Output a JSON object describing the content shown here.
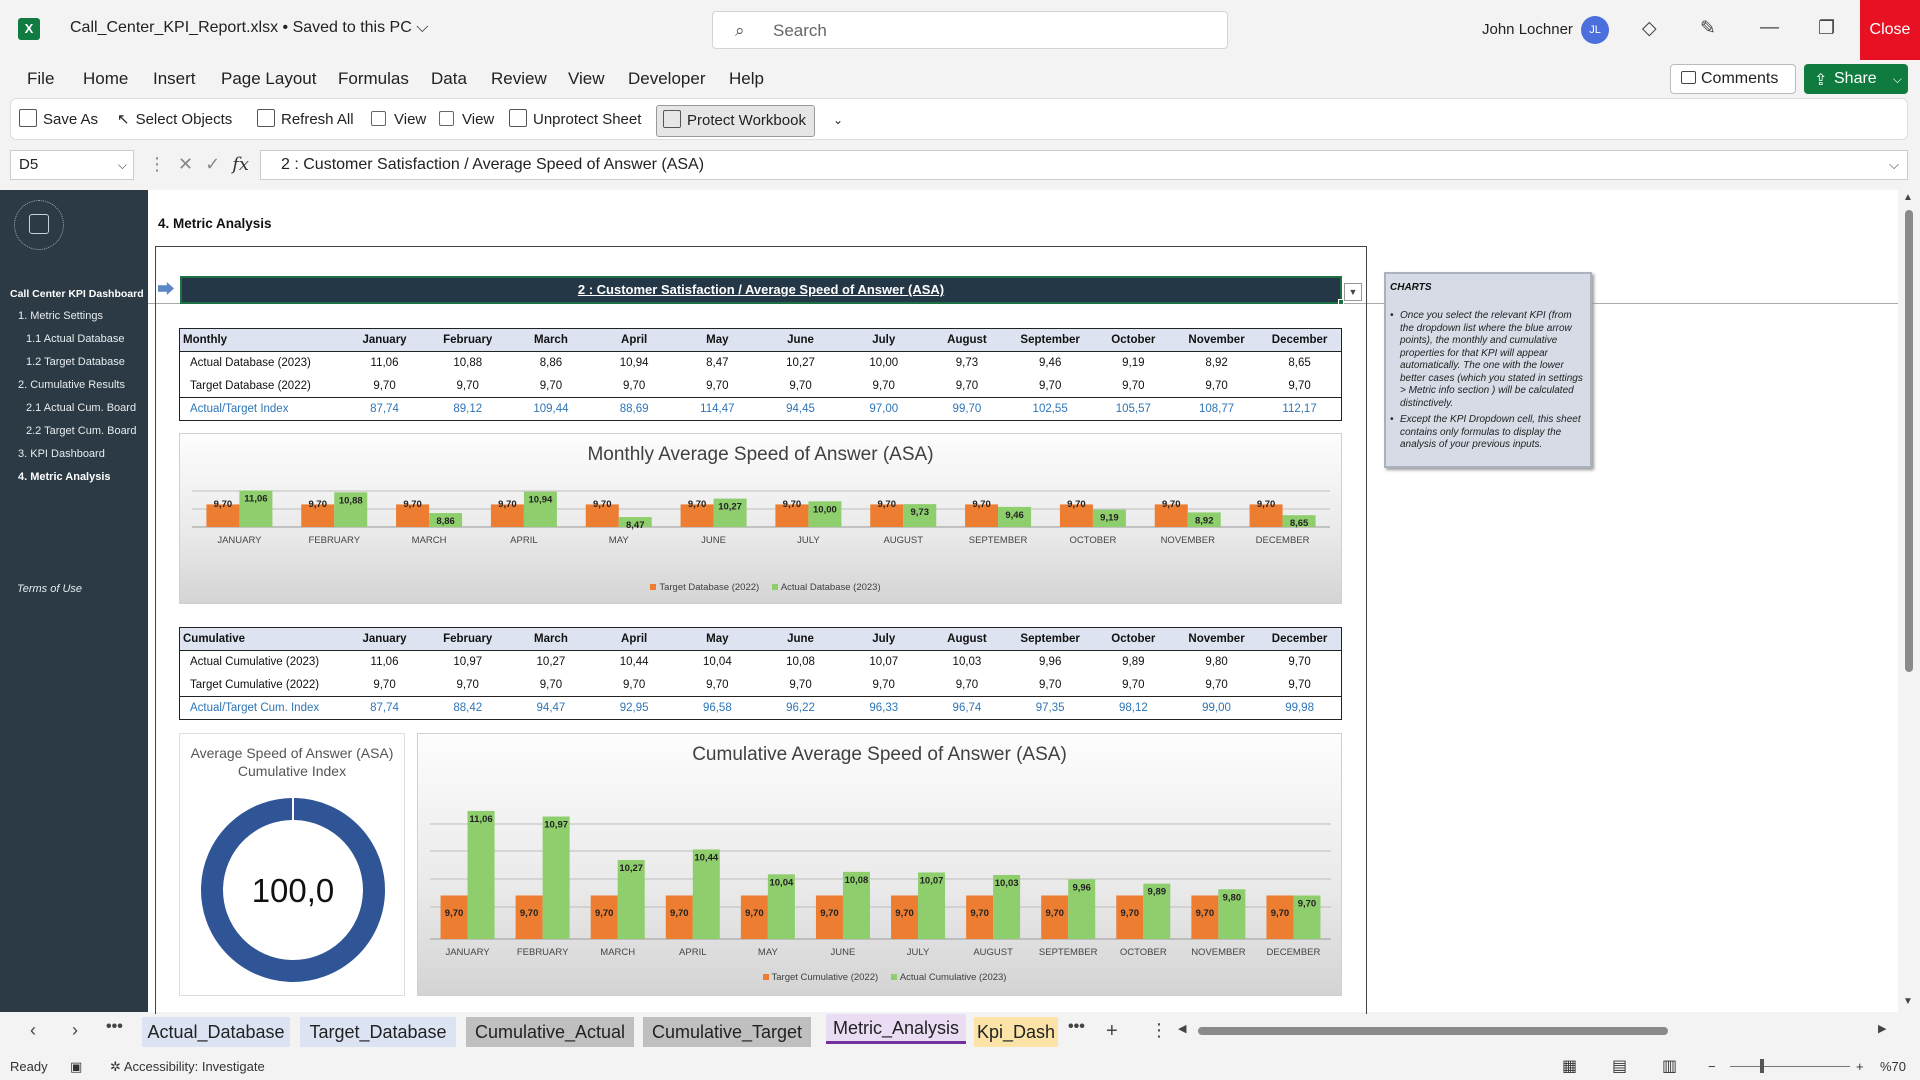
{
  "app": {
    "file_title": "Call_Center_KPI_Report.xlsx • Saved to this PC",
    "search_placeholder": "Search",
    "user_name": "John Lochner",
    "user_initials": "JL",
    "close_label": "Close"
  },
  "menu": [
    "File",
    "Home",
    "Insert",
    "Page Layout",
    "Formulas",
    "Data",
    "Review",
    "View",
    "Developer",
    "Help"
  ],
  "menu_right": {
    "comments": "Comments",
    "share": "Share"
  },
  "quick_toolbar": {
    "save_as": "Save As",
    "select_objects": "Select Objects",
    "refresh_all": "Refresh All",
    "view1": "View",
    "view2": "View",
    "unprotect_sheet": "Unprotect Sheet",
    "protect_workbook": "Protect Workbook"
  },
  "formula_bar": {
    "cell_ref": "D5",
    "formula": "2 : Customer Satisfaction / Average Speed of Answer (ASA)"
  },
  "sidebar": {
    "title": "Call Center KPI Dashboard",
    "items": [
      {
        "label": "1. Metric Settings",
        "indent": 0
      },
      {
        "label": "1.1 Actual Database",
        "indent": 1
      },
      {
        "label": "1.2 Target Database",
        "indent": 1
      },
      {
        "label": "2. Cumulative Results",
        "indent": 0
      },
      {
        "label": "2.1 Actual Cum. Board",
        "indent": 1
      },
      {
        "label": "2.2 Target Cum. Board",
        "indent": 1
      },
      {
        "label": "3. KPI Dashboard",
        "indent": 0
      },
      {
        "label": "4. Metric Analysis",
        "indent": 0,
        "active": true
      }
    ],
    "terms": "Terms of Use"
  },
  "section_title": "4. Metric Analysis",
  "kpi_selector": "2 : Customer Satisfaction / Average Speed of Answer (ASA)",
  "months": [
    "January",
    "February",
    "March",
    "April",
    "May",
    "June",
    "July",
    "August",
    "September",
    "October",
    "November",
    "December"
  ],
  "months_upper": [
    "JANUARY",
    "FEBRUARY",
    "MARCH",
    "APRIL",
    "MAY",
    "JUNE",
    "JULY",
    "AUGUST",
    "SEPTEMBER",
    "OCTOBER",
    "NOVEMBER",
    "DECEMBER"
  ],
  "monthly_table": {
    "header": "Monthly",
    "rows": [
      {
        "label": "Actual Database (2023)",
        "values": [
          "11,06",
          "10,88",
          "8,86",
          "10,94",
          "8,47",
          "10,27",
          "10,00",
          "9,73",
          "9,46",
          "9,19",
          "8,92",
          "8,65"
        ]
      },
      {
        "label": "Target Database (2022)",
        "values": [
          "9,70",
          "9,70",
          "9,70",
          "9,70",
          "9,70",
          "9,70",
          "9,70",
          "9,70",
          "9,70",
          "9,70",
          "9,70",
          "9,70"
        ]
      }
    ],
    "index_row": {
      "label": "Actual/Target Index",
      "values": [
        "87,74",
        "89,12",
        "109,44",
        "88,69",
        "114,47",
        "94,45",
        "97,00",
        "99,70",
        "102,55",
        "105,57",
        "108,77",
        "112,17"
      ]
    }
  },
  "cumulative_table": {
    "header": "Cumulative",
    "rows": [
      {
        "label": "Actual Cumulative (2023)",
        "values": [
          "11,06",
          "10,97",
          "10,27",
          "10,44",
          "10,04",
          "10,08",
          "10,07",
          "10,03",
          "9,96",
          "9,89",
          "9,80",
          "9,70"
        ]
      },
      {
        "label": "Target Cumulative (2022)",
        "values": [
          "9,70",
          "9,70",
          "9,70",
          "9,70",
          "9,70",
          "9,70",
          "9,70",
          "9,70",
          "9,70",
          "9,70",
          "9,70",
          "9,70"
        ]
      }
    ],
    "index_row": {
      "label": "Actual/Target Cum. Index",
      "values": [
        "87,74",
        "88,42",
        "94,47",
        "92,95",
        "96,58",
        "96,22",
        "96,33",
        "96,74",
        "97,35",
        "98,12",
        "99,00",
        "99,98"
      ]
    }
  },
  "chart_data": [
    {
      "type": "bar",
      "title": "Monthly Average Speed of Answer (ASA)",
      "categories": [
        "JANUARY",
        "FEBRUARY",
        "MARCH",
        "APRIL",
        "MAY",
        "JUNE",
        "JULY",
        "AUGUST",
        "SEPTEMBER",
        "OCTOBER",
        "NOVEMBER",
        "DECEMBER"
      ],
      "series": [
        {
          "name": "Target Database (2022)",
          "color": "#ed7d31",
          "values": [
            9.7,
            9.7,
            9.7,
            9.7,
            9.7,
            9.7,
            9.7,
            9.7,
            9.7,
            9.7,
            9.7,
            9.7
          ]
        },
        {
          "name": "Actual Database (2023)",
          "color": "#8fce6d",
          "values": [
            11.06,
            10.88,
            8.86,
            10.94,
            8.47,
            10.27,
            10.0,
            9.73,
            9.46,
            9.19,
            8.92,
            8.65
          ]
        }
      ],
      "ylim": [
        7.5,
        11.3
      ],
      "legend": "bottom"
    },
    {
      "type": "bar",
      "title": "Cumulative Average Speed of Answer (ASA)",
      "categories": [
        "JANUARY",
        "FEBRUARY",
        "MARCH",
        "APRIL",
        "MAY",
        "JUNE",
        "JULY",
        "AUGUST",
        "SEPTEMBER",
        "OCTOBER",
        "NOVEMBER",
        "DECEMBER"
      ],
      "series": [
        {
          "name": "Target Cumulative (2022)",
          "color": "#ed7d31",
          "values": [
            9.7,
            9.7,
            9.7,
            9.7,
            9.7,
            9.7,
            9.7,
            9.7,
            9.7,
            9.7,
            9.7,
            9.7
          ]
        },
        {
          "name": "Actual Cumulative (2023)",
          "color": "#8fce6d",
          "values": [
            11.06,
            10.97,
            10.27,
            10.44,
            10.04,
            10.08,
            10.07,
            10.03,
            9.96,
            9.89,
            9.8,
            9.7
          ]
        }
      ],
      "ylim": [
        9.0,
        11.3
      ],
      "legend": "bottom"
    },
    {
      "type": "pie",
      "title": "Average Speed of Answer (ASA) Cumulative Index",
      "center_label": "100,0",
      "values": [
        99.98,
        0.02
      ],
      "colors": [
        "#2f5597",
        "#d9d9d9"
      ]
    }
  ],
  "notes": {
    "title": "CHARTS",
    "bullets": [
      "Once you select the relevant KPI (from the dropdown list where the blue arrow points), the monthly and cumulative properties for that KPI will appear automatically. The one with the lower better cases (which you stated in settings > Metric info section ) will be calculated distinctively.",
      "Except the KPI Dropdown cell, this sheet contains only formulas to display the analysis of your previous inputs."
    ]
  },
  "sheet_tabs": [
    {
      "label": "Actual_Database",
      "color": "#dce3f3"
    },
    {
      "label": "Target_Database",
      "color": "#dce3f3"
    },
    {
      "label": "Cumulative_Actual",
      "color": "#bfbfbf"
    },
    {
      "label": "Cumulative_Target",
      "color": "#bfbfbf"
    },
    {
      "label": "Metric_Analysis",
      "color": "#eadcf3",
      "active": true
    },
    {
      "label": "Kpi_Dash",
      "color": "#fce4a8"
    }
  ],
  "status": {
    "ready": "Ready",
    "accessibility": "Accessibility: Investigate",
    "zoom": "%70"
  }
}
